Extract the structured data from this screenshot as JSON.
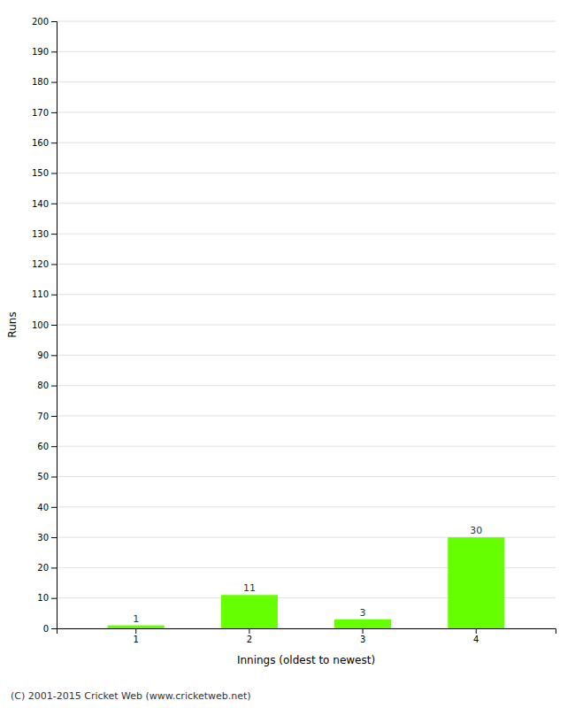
{
  "chart_data": {
    "type": "bar",
    "categories": [
      "1",
      "2",
      "3",
      "4"
    ],
    "values": [
      1,
      11,
      3,
      30
    ],
    "color": "#66ff00",
    "xlabel": "Innings (oldest to newest)",
    "ylabel": "Runs",
    "ylim": [
      0,
      200
    ],
    "yticks": [
      0,
      10,
      20,
      30,
      40,
      50,
      60,
      70,
      80,
      90,
      100,
      110,
      120,
      130,
      140,
      150,
      160,
      170,
      180,
      190,
      200
    ],
    "grid": true,
    "data_labels": true,
    "annotations": [
      "(C) 2001-2015 Cricket Web (www.cricketweb.net)"
    ]
  }
}
